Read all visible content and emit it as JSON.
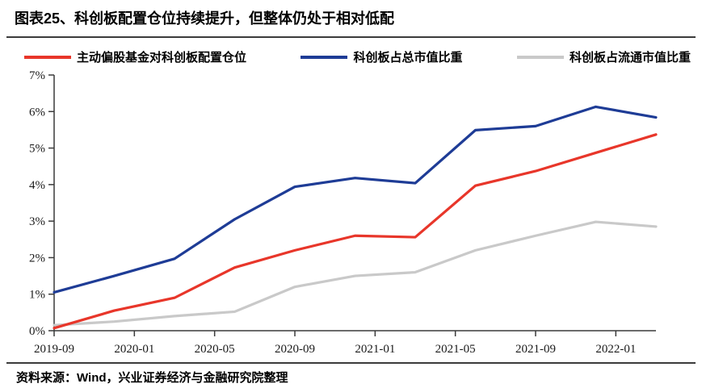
{
  "title": "图表25、科创板配置仓位持续提升，但整体仍处于相对低配",
  "source_note": {
    "label": "资料来源：",
    "text": "Wind，兴业证券经济与金融研究院整理"
  },
  "chart_data": {
    "type": "line",
    "title": "",
    "xlabel": "",
    "ylabel": "",
    "grid": false,
    "legend_position": "top",
    "x_dates": [
      "2019-09",
      "2019-12",
      "2020-03",
      "2020-06",
      "2020-09",
      "2020-12",
      "2021-03",
      "2021-06",
      "2021-09",
      "2021-12",
      "2022-03"
    ],
    "x": [
      0,
      3,
      6,
      9,
      12,
      15,
      18,
      21,
      24,
      27,
      30
    ],
    "series": [
      {
        "name": "主动偏股基金对科创板配置仓位",
        "color": "#e8362a",
        "values": [
          0.07,
          0.55,
          0.9,
          1.73,
          2.2,
          2.6,
          2.56,
          3.97,
          4.37,
          4.87,
          5.37
        ]
      },
      {
        "name": "科创板占总市值比重",
        "color": "#1e3c96",
        "values": [
          1.05,
          1.5,
          1.97,
          3.05,
          3.94,
          4.18,
          4.04,
          5.49,
          5.6,
          6.13,
          5.84
        ]
      },
      {
        "name": "科创板占流通市值比重",
        "color": "#c9c9c9",
        "values": [
          0.15,
          0.25,
          0.4,
          0.52,
          1.2,
          1.5,
          1.6,
          2.2,
          2.6,
          2.98,
          2.85
        ]
      }
    ],
    "ylim": [
      0,
      7
    ],
    "y_ticks": [
      "7%",
      "6%",
      "5%",
      "4%",
      "3%",
      "2%",
      "1%",
      "0%"
    ],
    "x_tick_labels": [
      "2019-09",
      "2020-01",
      "2020-05",
      "2020-09",
      "2021-01",
      "2021-05",
      "2021-09",
      "2022-01"
    ],
    "x_tick_months": [
      0,
      4,
      8,
      12,
      16,
      20,
      24,
      28
    ],
    "xlim_months": [
      0,
      30
    ]
  }
}
